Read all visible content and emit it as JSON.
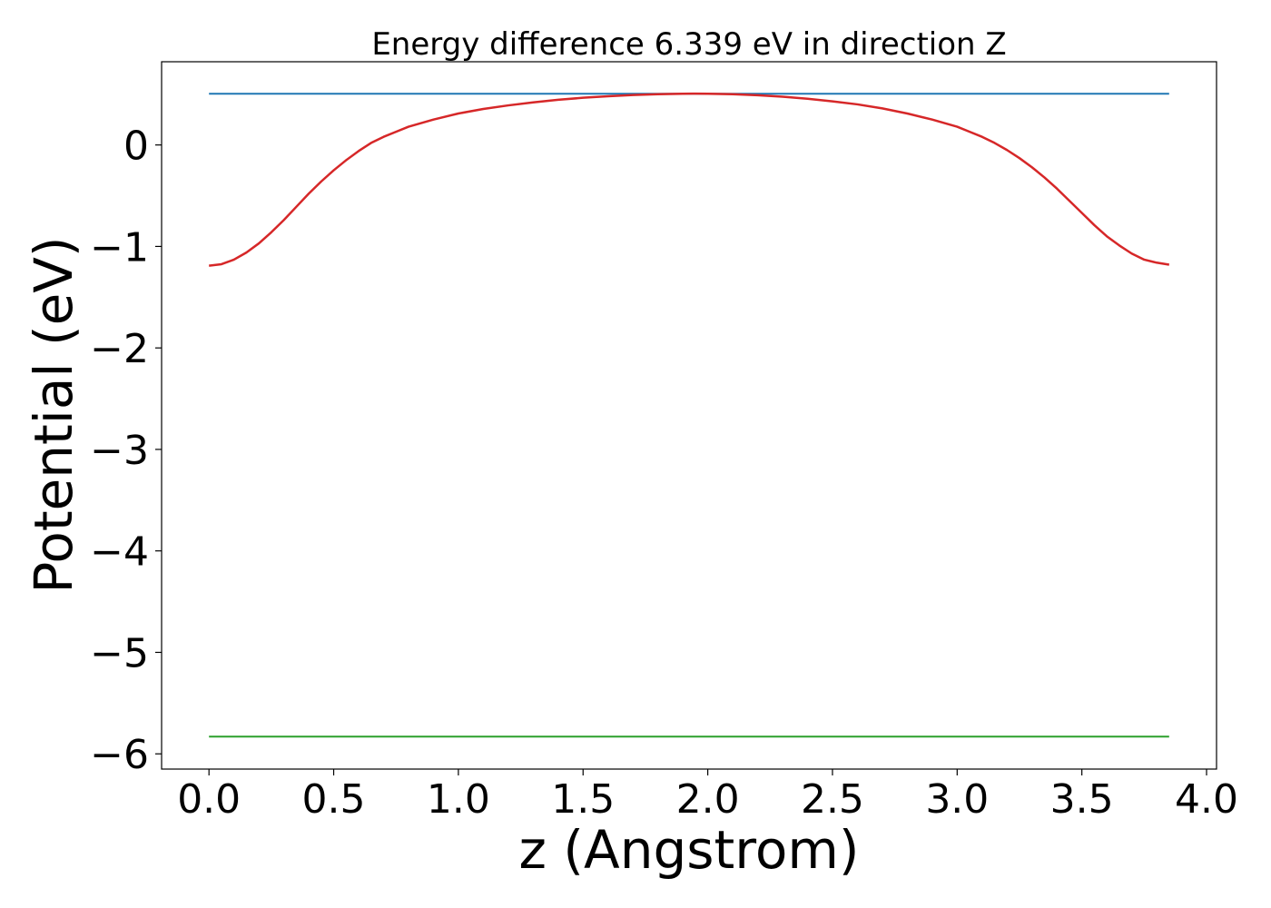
{
  "chart_data": {
    "type": "line",
    "title": "Energy difference 6.339 eV in direction Z",
    "xlabel": "z (Angstrom)",
    "ylabel": "Potential (eV)",
    "xlim": [
      -0.19,
      4.04
    ],
    "ylim": [
      -6.15,
      0.82
    ],
    "xticks": [
      0.0,
      0.5,
      1.0,
      1.5,
      2.0,
      2.5,
      3.0,
      3.5,
      4.0
    ],
    "xtick_labels": [
      "0.0",
      "0.5",
      "1.0",
      "1.5",
      "2.0",
      "2.5",
      "3.0",
      "3.5",
      "4.0"
    ],
    "yticks": [
      0,
      -1,
      -2,
      -3,
      -4,
      -5,
      -6
    ],
    "ytick_labels": [
      "0",
      "−1",
      "−2",
      "−3",
      "−4",
      "−5",
      "−6"
    ],
    "grid": false,
    "legend": "none",
    "series": [
      {
        "color": "#1f77b4",
        "x": [
          0.0,
          3.85
        ],
        "y": [
          0.505,
          0.505
        ]
      },
      {
        "color": "#2ca02c",
        "x": [
          0.0,
          3.85
        ],
        "y": [
          -5.83,
          -5.83
        ]
      },
      {
        "color": "#d62728",
        "x": [
          0.0,
          0.05,
          0.1,
          0.15,
          0.2,
          0.25,
          0.3,
          0.35,
          0.4,
          0.45,
          0.5,
          0.55,
          0.6,
          0.65,
          0.7,
          0.75,
          0.8,
          0.9,
          1.0,
          1.1,
          1.2,
          1.3,
          1.4,
          1.5,
          1.6,
          1.7,
          1.8,
          1.9,
          1.95,
          2.0,
          2.1,
          2.2,
          2.3,
          2.4,
          2.5,
          2.6,
          2.7,
          2.8,
          2.9,
          3.0,
          3.05,
          3.1,
          3.15,
          3.2,
          3.25,
          3.3,
          3.35,
          3.4,
          3.45,
          3.5,
          3.55,
          3.6,
          3.65,
          3.7,
          3.75,
          3.8,
          3.85
        ],
        "y": [
          -1.19,
          -1.175,
          -1.13,
          -1.06,
          -0.97,
          -0.86,
          -0.74,
          -0.61,
          -0.48,
          -0.36,
          -0.25,
          -0.15,
          -0.06,
          0.02,
          0.08,
          0.13,
          0.18,
          0.25,
          0.31,
          0.355,
          0.39,
          0.42,
          0.445,
          0.465,
          0.48,
          0.492,
          0.5,
          0.505,
          0.506,
          0.505,
          0.5,
          0.49,
          0.475,
          0.455,
          0.43,
          0.4,
          0.36,
          0.31,
          0.25,
          0.18,
          0.13,
          0.08,
          0.02,
          -0.05,
          -0.13,
          -0.22,
          -0.32,
          -0.43,
          -0.55,
          -0.67,
          -0.79,
          -0.9,
          -0.99,
          -1.07,
          -1.13,
          -1.16,
          -1.18
        ]
      }
    ]
  }
}
